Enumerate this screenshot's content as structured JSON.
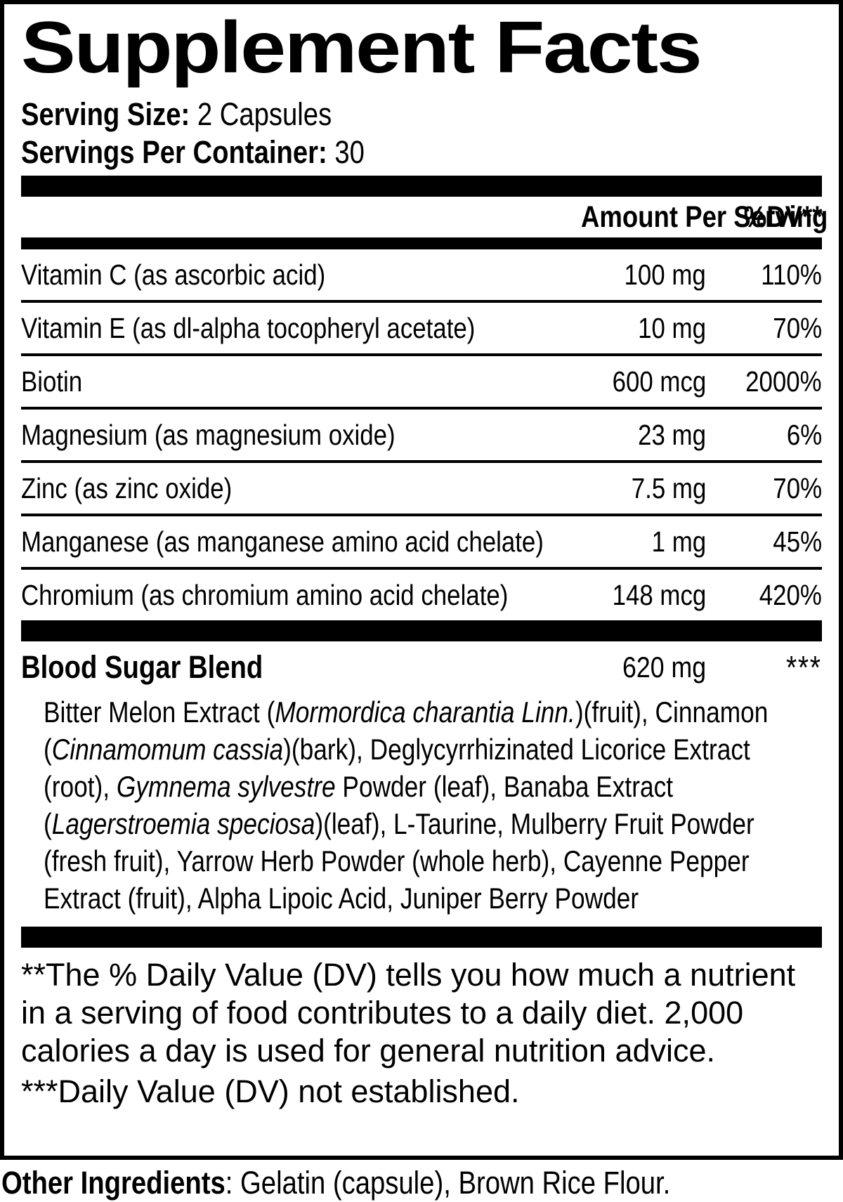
{
  "title": "Supplement Facts",
  "serving": {
    "size_label": "Serving Size:",
    "size_value": "2 Capsules",
    "container_label": "Servings Per Container:",
    "container_value": "30"
  },
  "table": {
    "amount_header": "Amount Per Serving",
    "dv_header": "%DV**",
    "rows": [
      {
        "name": "Vitamin C (as ascorbic acid)",
        "amount": "100 mg",
        "dv": "110%"
      },
      {
        "name": "Vitamin E (as dl-alpha tocopheryl acetate)",
        "amount": "10 mg",
        "dv": "70%"
      },
      {
        "name": "Biotin",
        "amount": "600 mcg",
        "dv": "2000%"
      },
      {
        "name": "Magnesium (as magnesium oxide)",
        "amount": "23 mg",
        "dv": "6%"
      },
      {
        "name": "Zinc (as zinc oxide)",
        "amount": "7.5 mg",
        "dv": "70%"
      },
      {
        "name": "Manganese (as manganese amino acid chelate)",
        "amount": "1 mg",
        "dv": "45%"
      },
      {
        "name": "Chromium (as chromium amino acid chelate)",
        "amount": "148 mcg",
        "dv": "420%"
      }
    ]
  },
  "blend": {
    "name": "Blood Sugar Blend",
    "amount": "620 mg",
    "dv": "***",
    "ingredients": [
      {
        "text": "Bitter Melon Extract (",
        "italic": false
      },
      {
        "text": "Mormordica charantia Linn.",
        "italic": true
      },
      {
        "text": ")(fruit), Cinnamon (",
        "italic": false
      },
      {
        "text": "Cinnamomum cassia",
        "italic": true
      },
      {
        "text": ")(bark), Deglycyrrhizinated Licorice Extract (root), ",
        "italic": false
      },
      {
        "text": "Gymnema sylvestre",
        "italic": true
      },
      {
        "text": " Powder (leaf), Banaba Extract (",
        "italic": false
      },
      {
        "text": "Lagerstroemia speciosa",
        "italic": true
      },
      {
        "text": ")(leaf), L-Taurine, Mulberry Fruit Powder (fresh fruit), Yarrow Herb Powder (whole herb), Cayenne Pepper Extract (fruit), Alpha Lipoic Acid, Juniper Berry Powder",
        "italic": false
      }
    ]
  },
  "footnotes": {
    "dv_note": "**The % Daily Value (DV) tells you how much a nutrient in a serving of food contributes to a daily diet. 2,000 calories a day is used for general nutrition advice.",
    "not_established_note": "***Daily Value (DV) not established."
  },
  "other_ingredients": {
    "label": "Other Ingredients",
    "value": ": Gelatin (capsule), Brown Rice Flour."
  }
}
